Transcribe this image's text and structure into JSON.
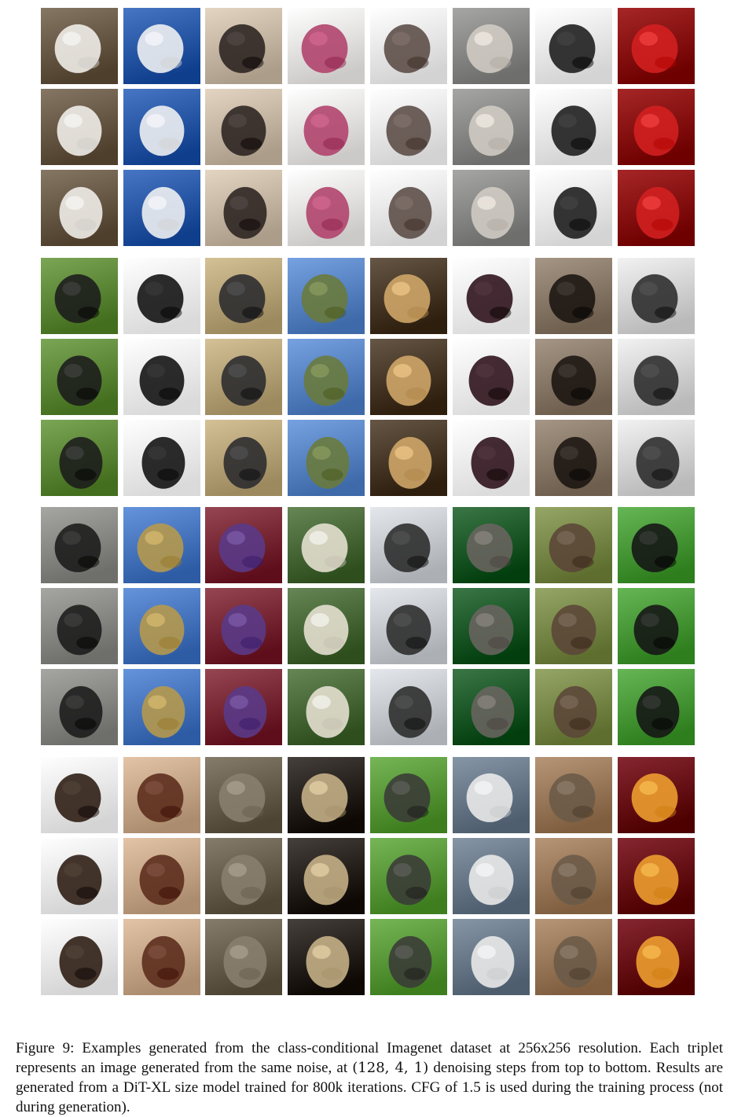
{
  "figure": {
    "caption": {
      "label": "Figure 9:",
      "part1": " Examples generated from the class-conditional Imagenet dataset at 256x256 resolution. Each triplet represents an image generated from the same noise, at ",
      "math": "(128, 4, 1)",
      "part2": " denoising steps from top to bottom. Results are generated from a DiT-XL size model trained for 800k iterations. CFG of 1.5 is used during the training process (not during generation)."
    },
    "blocks": [
      {
        "subjects": [
          {
            "icon": "white-container-icon",
            "bg": "#6a5a48",
            "fg": "#f2f0ec"
          },
          {
            "icon": "glass-pitcher-icon",
            "bg": "#2b5aa8",
            "fg": "#f4f4f4"
          },
          {
            "icon": "person-seated-icon",
            "bg": "#c8b9a6",
            "fg": "#2a2220"
          },
          {
            "icon": "store-shelves-icon",
            "bg": "#e8e6e4",
            "fg": "#b0406a"
          },
          {
            "icon": "turtle-shell-icon",
            "bg": "#efefef",
            "fg": "#5a4a44"
          },
          {
            "icon": "manhole-cover-icon",
            "bg": "#8a8a88",
            "fg": "#d2ccc4"
          },
          {
            "icon": "tripod-stand-icon",
            "bg": "#f0f0f0",
            "fg": "#1a1a1a"
          },
          {
            "icon": "tomatoes-icon",
            "bg": "#8a0a0a",
            "fg": "#d42020"
          }
        ]
      },
      {
        "subjects": [
          {
            "icon": "gorilla-icon",
            "bg": "#5f8a3a",
            "fg": "#1b1b1b"
          },
          {
            "icon": "black-coats-icon",
            "bg": "#f6f6f6",
            "fg": "#0f0f0f"
          },
          {
            "icon": "black-sweater-icon",
            "bg": "#b8a57a",
            "fg": "#2a2a2e"
          },
          {
            "icon": "mountain-valley-icon",
            "bg": "#5a86c6",
            "fg": "#6a7a3a"
          },
          {
            "icon": "teddy-bear-icon",
            "bg": "#4a3a2a",
            "fg": "#d2a86a"
          },
          {
            "icon": "dark-dress-icon",
            "bg": "#f8f8f8",
            "fg": "#2a0e18"
          },
          {
            "icon": "dog-face-icon",
            "bg": "#8a7a6a",
            "fg": "#1a1410"
          },
          {
            "icon": "bench-seats-icon",
            "bg": "#d6d6d6",
            "fg": "#2a2a2a"
          }
        ]
      },
      {
        "subjects": [
          {
            "icon": "mountain-dog-icon",
            "bg": "#8a8a86",
            "fg": "#1a1a1a"
          },
          {
            "icon": "crane-tower-icon",
            "bg": "#4a78c0",
            "fg": "#b89a4a"
          },
          {
            "icon": "freight-car-icon",
            "bg": "#7a2a36",
            "fg": "#5a3a8a"
          },
          {
            "icon": "shaggy-dog-icon",
            "bg": "#4a6a3a",
            "fg": "#e8e2d4"
          },
          {
            "icon": "washing-machine-icon",
            "bg": "#c8ccd0",
            "fg": "#2a2a2a"
          },
          {
            "icon": "owl-face-icon",
            "bg": "#1e5a2a",
            "fg": "#6a6460"
          },
          {
            "icon": "quail-bird-icon",
            "bg": "#7a8a4a",
            "fg": "#5a4638"
          },
          {
            "icon": "doberman-icon",
            "bg": "#4a9a3a",
            "fg": "#141414"
          }
        ]
      },
      {
        "subjects": [
          {
            "icon": "beetle-icon",
            "bg": "#f0f0f0",
            "fg": "#2a1a10"
          },
          {
            "icon": "upright-piano-icon",
            "bg": "#c8a88a",
            "fg": "#5a2a1a"
          },
          {
            "icon": "tabby-cat-icon",
            "bg": "#6a6050",
            "fg": "#8a8070"
          },
          {
            "icon": "coiled-snake-icon",
            "bg": "#2a2420",
            "fg": "#c8b48a"
          },
          {
            "icon": "warthog-icon",
            "bg": "#5a9a3a",
            "fg": "#3a3a38"
          },
          {
            "icon": "rv-camper-icon",
            "bg": "#6a7a8a",
            "fg": "#ececec"
          },
          {
            "icon": "baboons-icon",
            "bg": "#9a7a5a",
            "fg": "#6a5a48"
          },
          {
            "icon": "fruit-pile-icon",
            "bg": "#6a0a14",
            "fg": "#f0a030"
          }
        ]
      }
    ]
  }
}
